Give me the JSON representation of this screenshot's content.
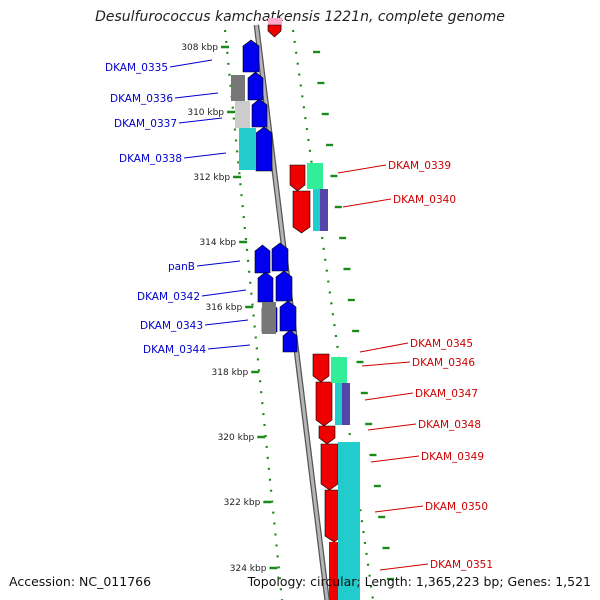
{
  "title": "Desulfurococcus kamchatkensis 1221n, complete genome",
  "footer": {
    "accession": "Accession: NC_011766",
    "summary": "Topology: circular; Length: 1,365,223 bp; Genes: 1,521"
  },
  "colors": {
    "forward_label": "#0000cc",
    "reverse_label": "#cc0000",
    "cds_blue": "#0000ee",
    "cds_red": "#ee0000",
    "tick_green": "#1a8a1a",
    "backbone": "#888888",
    "gc_cyan": "#22cccc",
    "gc_gray": "#777777",
    "gc_light": "#cccccc",
    "gc_mint": "#33ee99",
    "gc_purple": "#5544aa"
  },
  "ticks": [
    "308 kbp",
    "310 kbp",
    "312 kbp",
    "314 kbp",
    "316 kbp",
    "318 kbp",
    "320 kbp",
    "322 kbp",
    "324 kbp"
  ],
  "forward_genes": [
    "DKAM_0335",
    "DKAM_0336",
    "DKAM_0337",
    "DKAM_0338",
    "panB",
    "DKAM_0342",
    "DKAM_0343",
    "DKAM_0344"
  ],
  "reverse_genes": [
    "DKAM_0339",
    "DKAM_0340",
    "DKAM_0345",
    "DKAM_0346",
    "DKAM_0347",
    "DKAM_0348",
    "DKAM_0349",
    "DKAM_0350",
    "DKAM_0351"
  ]
}
